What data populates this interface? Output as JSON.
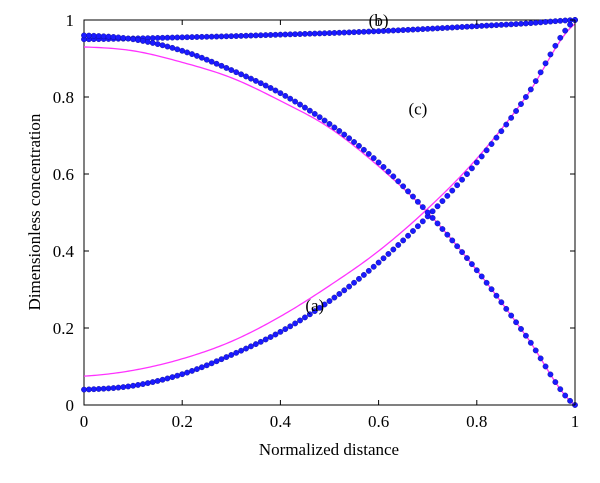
{
  "chart_data": {
    "type": "scatter",
    "title": "",
    "xlabel": "Normalized distance",
    "ylabel": "Dimensionless concentration",
    "xlim": [
      0,
      1
    ],
    "ylim": [
      0,
      1
    ],
    "xticks": [
      0,
      0.2,
      0.4,
      0.6,
      0.8,
      1
    ],
    "xtick_labels": [
      "0",
      "0.2",
      "0.4",
      "0.6",
      "0.8",
      "1"
    ],
    "yticks": [
      0,
      0.2,
      0.4,
      0.6,
      0.8,
      1
    ],
    "ytick_labels": [
      "0",
      "0.2",
      "0.4",
      "0.6",
      "0.8",
      "1"
    ],
    "grid": false,
    "annotations": [
      {
        "text": "(a)",
        "x": 0.47,
        "y": 0.26
      },
      {
        "text": "(b)",
        "x": 0.6,
        "y": 1.0
      },
      {
        "text": "(c)",
        "x": 0.68,
        "y": 0.77
      }
    ],
    "series": [
      {
        "curve": "a",
        "kind": "markers",
        "color": "#1a1aff",
        "x": [
          0,
          0.1,
          0.2,
          0.3,
          0.4,
          0.5,
          0.6,
          0.7,
          0.8,
          0.9,
          1.0
        ],
        "y": [
          0.04,
          0.05,
          0.08,
          0.13,
          0.19,
          0.27,
          0.37,
          0.49,
          0.63,
          0.8,
          1.0
        ]
      },
      {
        "curve": "a",
        "kind": "line",
        "color": "#ff33ff",
        "x": [
          0,
          0.1,
          0.2,
          0.3,
          0.4,
          0.5,
          0.6,
          0.7,
          0.8,
          0.9,
          1.0
        ],
        "y": [
          0.075,
          0.09,
          0.12,
          0.165,
          0.23,
          0.31,
          0.4,
          0.51,
          0.64,
          0.8,
          0.99
        ]
      },
      {
        "curve": "b",
        "kind": "markers",
        "color": "#1a1aff",
        "x": [
          0,
          0.1,
          0.2,
          0.3,
          0.4,
          0.5,
          0.6,
          0.7,
          0.8,
          0.9,
          1.0
        ],
        "y": [
          0.95,
          0.952,
          0.955,
          0.958,
          0.962,
          0.966,
          0.971,
          0.977,
          0.984,
          0.991,
          1.0
        ]
      },
      {
        "curve": "c",
        "kind": "markers",
        "color": "#1a1aff",
        "x": [
          0,
          0.1,
          0.2,
          0.3,
          0.4,
          0.5,
          0.6,
          0.7,
          0.8,
          0.9,
          1.0
        ],
        "y": [
          0.96,
          0.95,
          0.92,
          0.87,
          0.81,
          0.73,
          0.63,
          0.5,
          0.35,
          0.18,
          0.0
        ]
      },
      {
        "curve": "c",
        "kind": "line",
        "color": "#ff33ff",
        "x": [
          0,
          0.1,
          0.2,
          0.3,
          0.4,
          0.5,
          0.6,
          0.7,
          0.8,
          0.9,
          1.0
        ],
        "y": [
          0.93,
          0.92,
          0.89,
          0.85,
          0.79,
          0.72,
          0.62,
          0.5,
          0.35,
          0.18,
          0.0
        ]
      }
    ]
  }
}
